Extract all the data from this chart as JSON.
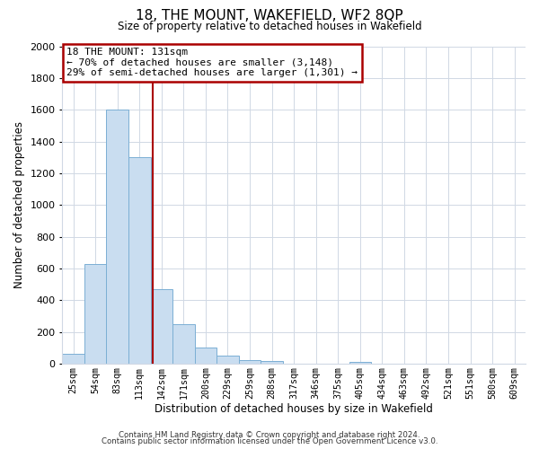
{
  "title": "18, THE MOUNT, WAKEFIELD, WF2 8QP",
  "subtitle": "Size of property relative to detached houses in Wakefield",
  "xlabel": "Distribution of detached houses by size in Wakefield",
  "ylabel": "Number of detached properties",
  "footer_line1": "Contains HM Land Registry data © Crown copyright and database right 2024.",
  "footer_line2": "Contains public sector information licensed under the Open Government Licence v3.0.",
  "bar_labels": [
    "25sqm",
    "54sqm",
    "83sqm",
    "113sqm",
    "142sqm",
    "171sqm",
    "200sqm",
    "229sqm",
    "259sqm",
    "288sqm",
    "317sqm",
    "346sqm",
    "375sqm",
    "405sqm",
    "434sqm",
    "463sqm",
    "492sqm",
    "521sqm",
    "551sqm",
    "580sqm",
    "609sqm"
  ],
  "bar_values": [
    65,
    630,
    1600,
    1300,
    470,
    250,
    100,
    50,
    25,
    20,
    0,
    0,
    0,
    15,
    0,
    0,
    0,
    0,
    0,
    0,
    0
  ],
  "bar_color": "#c9ddf0",
  "bar_edge_color": "#7bafd4",
  "vline_x_index": 3,
  "vline_color": "#aa0000",
  "annotation_title": "18 THE MOUNT: 131sqm",
  "annotation_line2": "← 70% of detached houses are smaller (3,148)",
  "annotation_line3": "29% of semi-detached houses are larger (1,301) →",
  "annotation_box_edge_color": "#aa0000",
  "ylim": [
    0,
    2000
  ],
  "yticks": [
    0,
    200,
    400,
    600,
    800,
    1000,
    1200,
    1400,
    1600,
    1800,
    2000
  ],
  "background_color": "#ffffff",
  "grid_color": "#d0d8e4"
}
